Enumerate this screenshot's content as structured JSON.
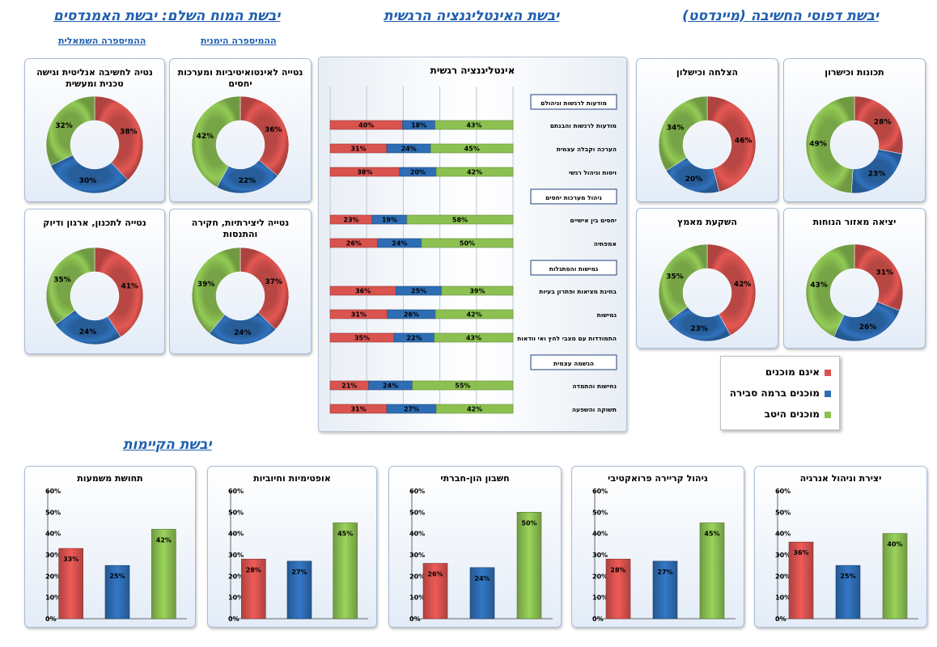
{
  "sections": {
    "mind": "יבשת דפוסי החשיבה (מיינדסט)",
    "ei": "יבשת האינטליגנציה הרגשית",
    "brain": "יבשת המוח השלם: יבשת האמנדסים",
    "brain_right": "ההמיספרה הימנית",
    "brain_left": "ההמיספרה השמאלית",
    "existence": "יבשת הקיימות"
  },
  "colors": {
    "red": "#d9534f",
    "blue": "#2e6db4",
    "green": "#8cc152",
    "title": "#1f5fae"
  },
  "legend": {
    "items": [
      {
        "label": "אינם מוכנים",
        "color": "#d9534f"
      },
      {
        "label": "מוכנים ברמה סבירה",
        "color": "#2e6db4"
      },
      {
        "label": "מוכנים היטב",
        "color": "#8cc152"
      }
    ]
  },
  "chart_data": [
    {
      "type": "pie",
      "title": "תכונות וכישרון",
      "values": [
        28,
        23,
        49
      ],
      "labels": [
        "28%",
        "23%",
        "49%"
      ]
    },
    {
      "type": "pie",
      "title": "הצלחה וכישלון",
      "values": [
        46,
        20,
        34
      ],
      "labels": [
        "46%",
        "20%",
        "34%"
      ]
    },
    {
      "type": "pie",
      "title": "יציאה מאזור הנוחות",
      "values": [
        31,
        26,
        43
      ],
      "labels": [
        "31%",
        "26%",
        "43%"
      ]
    },
    {
      "type": "pie",
      "title": "השקעת מאמץ",
      "values": [
        42,
        23,
        35
      ],
      "labels": [
        "42%",
        "23%",
        "35%"
      ]
    },
    {
      "type": "pie",
      "title": "נטייה לאינטואיטיביות ומערכות יחסים",
      "values": [
        36,
        22,
        42
      ],
      "labels": [
        "36%",
        "22%",
        "42%"
      ]
    },
    {
      "type": "pie",
      "title": "נטיה לחשיבה אנליטית וגישה טכנית ומעשית",
      "values": [
        38,
        30,
        32
      ],
      "labels": [
        "38%",
        "30%",
        "32%"
      ]
    },
    {
      "type": "pie",
      "title": "נטייה ליצירתיות, חקירה והתנסות",
      "values": [
        37,
        24,
        39
      ],
      "labels": [
        "37%",
        "24%",
        "39%"
      ]
    },
    {
      "type": "pie",
      "title": "נטייה לתכנון, ארגון ודיוק",
      "values": [
        41,
        24,
        35
      ],
      "labels": [
        "41%",
        "24%",
        "35%"
      ]
    },
    {
      "type": "bar",
      "title": "אינטליגנציה רגשית",
      "groups": [
        {
          "header": "מודעות לרגשות וניהולם",
          "rows": [
            {
              "label": "מודעות לרגשות והבנתם",
              "values": [
                40,
                18,
                43
              ]
            },
            {
              "label": "הערכה וקבלה עצמית",
              "values": [
                31,
                24,
                45
              ]
            },
            {
              "label": "ויסות וניהול רגשי",
              "values": [
                38,
                20,
                42
              ]
            }
          ]
        },
        {
          "header": "ניהול מערכות יחסים",
          "rows": [
            {
              "label": "יחסים בין אישיים",
              "values": [
                23,
                19,
                58
              ]
            },
            {
              "label": "אמפתיה",
              "values": [
                26,
                24,
                50
              ]
            }
          ]
        },
        {
          "header": "גמישות והסתגלות",
          "rows": [
            {
              "label": "בחינת מציאות ופתרון בעיות",
              "values": [
                36,
                25,
                39
              ]
            },
            {
              "label": "גמישות",
              "values": [
                31,
                26,
                42
              ]
            },
            {
              "label": "התמודדות עם מצבי לחץ ואי וודאות",
              "values": [
                35,
                22,
                43
              ]
            }
          ]
        },
        {
          "header": "הגשמה עצמית",
          "rows": [
            {
              "label": "נחישות והתמדה",
              "values": [
                21,
                24,
                55
              ]
            },
            {
              "label": "תשוקה והשפעה",
              "values": [
                31,
                27,
                42
              ]
            }
          ]
        }
      ]
    },
    {
      "type": "bar",
      "title": "יצירת וניהול אנרגיה",
      "values": [
        36,
        25,
        40
      ],
      "ylim": [
        0,
        60
      ],
      "yticks": [
        "0%",
        "10%",
        "20%",
        "30%",
        "40%",
        "50%",
        "60%"
      ]
    },
    {
      "type": "bar",
      "title": "ניהול קריירה פרואקטיבי",
      "values": [
        28,
        27,
        45
      ],
      "ylim": [
        0,
        60
      ],
      "yticks": [
        "0%",
        "10%",
        "20%",
        "30%",
        "40%",
        "50%",
        "60%"
      ]
    },
    {
      "type": "bar",
      "title": "חשבון הון-חברתי",
      "values": [
        26,
        24,
        50
      ],
      "ylim": [
        0,
        60
      ],
      "yticks": [
        "0%",
        "10%",
        "20%",
        "30%",
        "40%",
        "50%",
        "60%"
      ]
    },
    {
      "type": "bar",
      "title": "אופטימיות וחיוביות",
      "values": [
        28,
        27,
        45
      ],
      "ylim": [
        0,
        60
      ],
      "yticks": [
        "0%",
        "10%",
        "20%",
        "30%",
        "40%",
        "50%",
        "60%"
      ]
    },
    {
      "type": "bar",
      "title": "תחושת משמעות",
      "values": [
        33,
        25,
        42
      ],
      "ylim": [
        0,
        60
      ],
      "yticks": [
        "0%",
        "10%",
        "20%",
        "30%",
        "40%",
        "50%",
        "60%"
      ]
    }
  ]
}
